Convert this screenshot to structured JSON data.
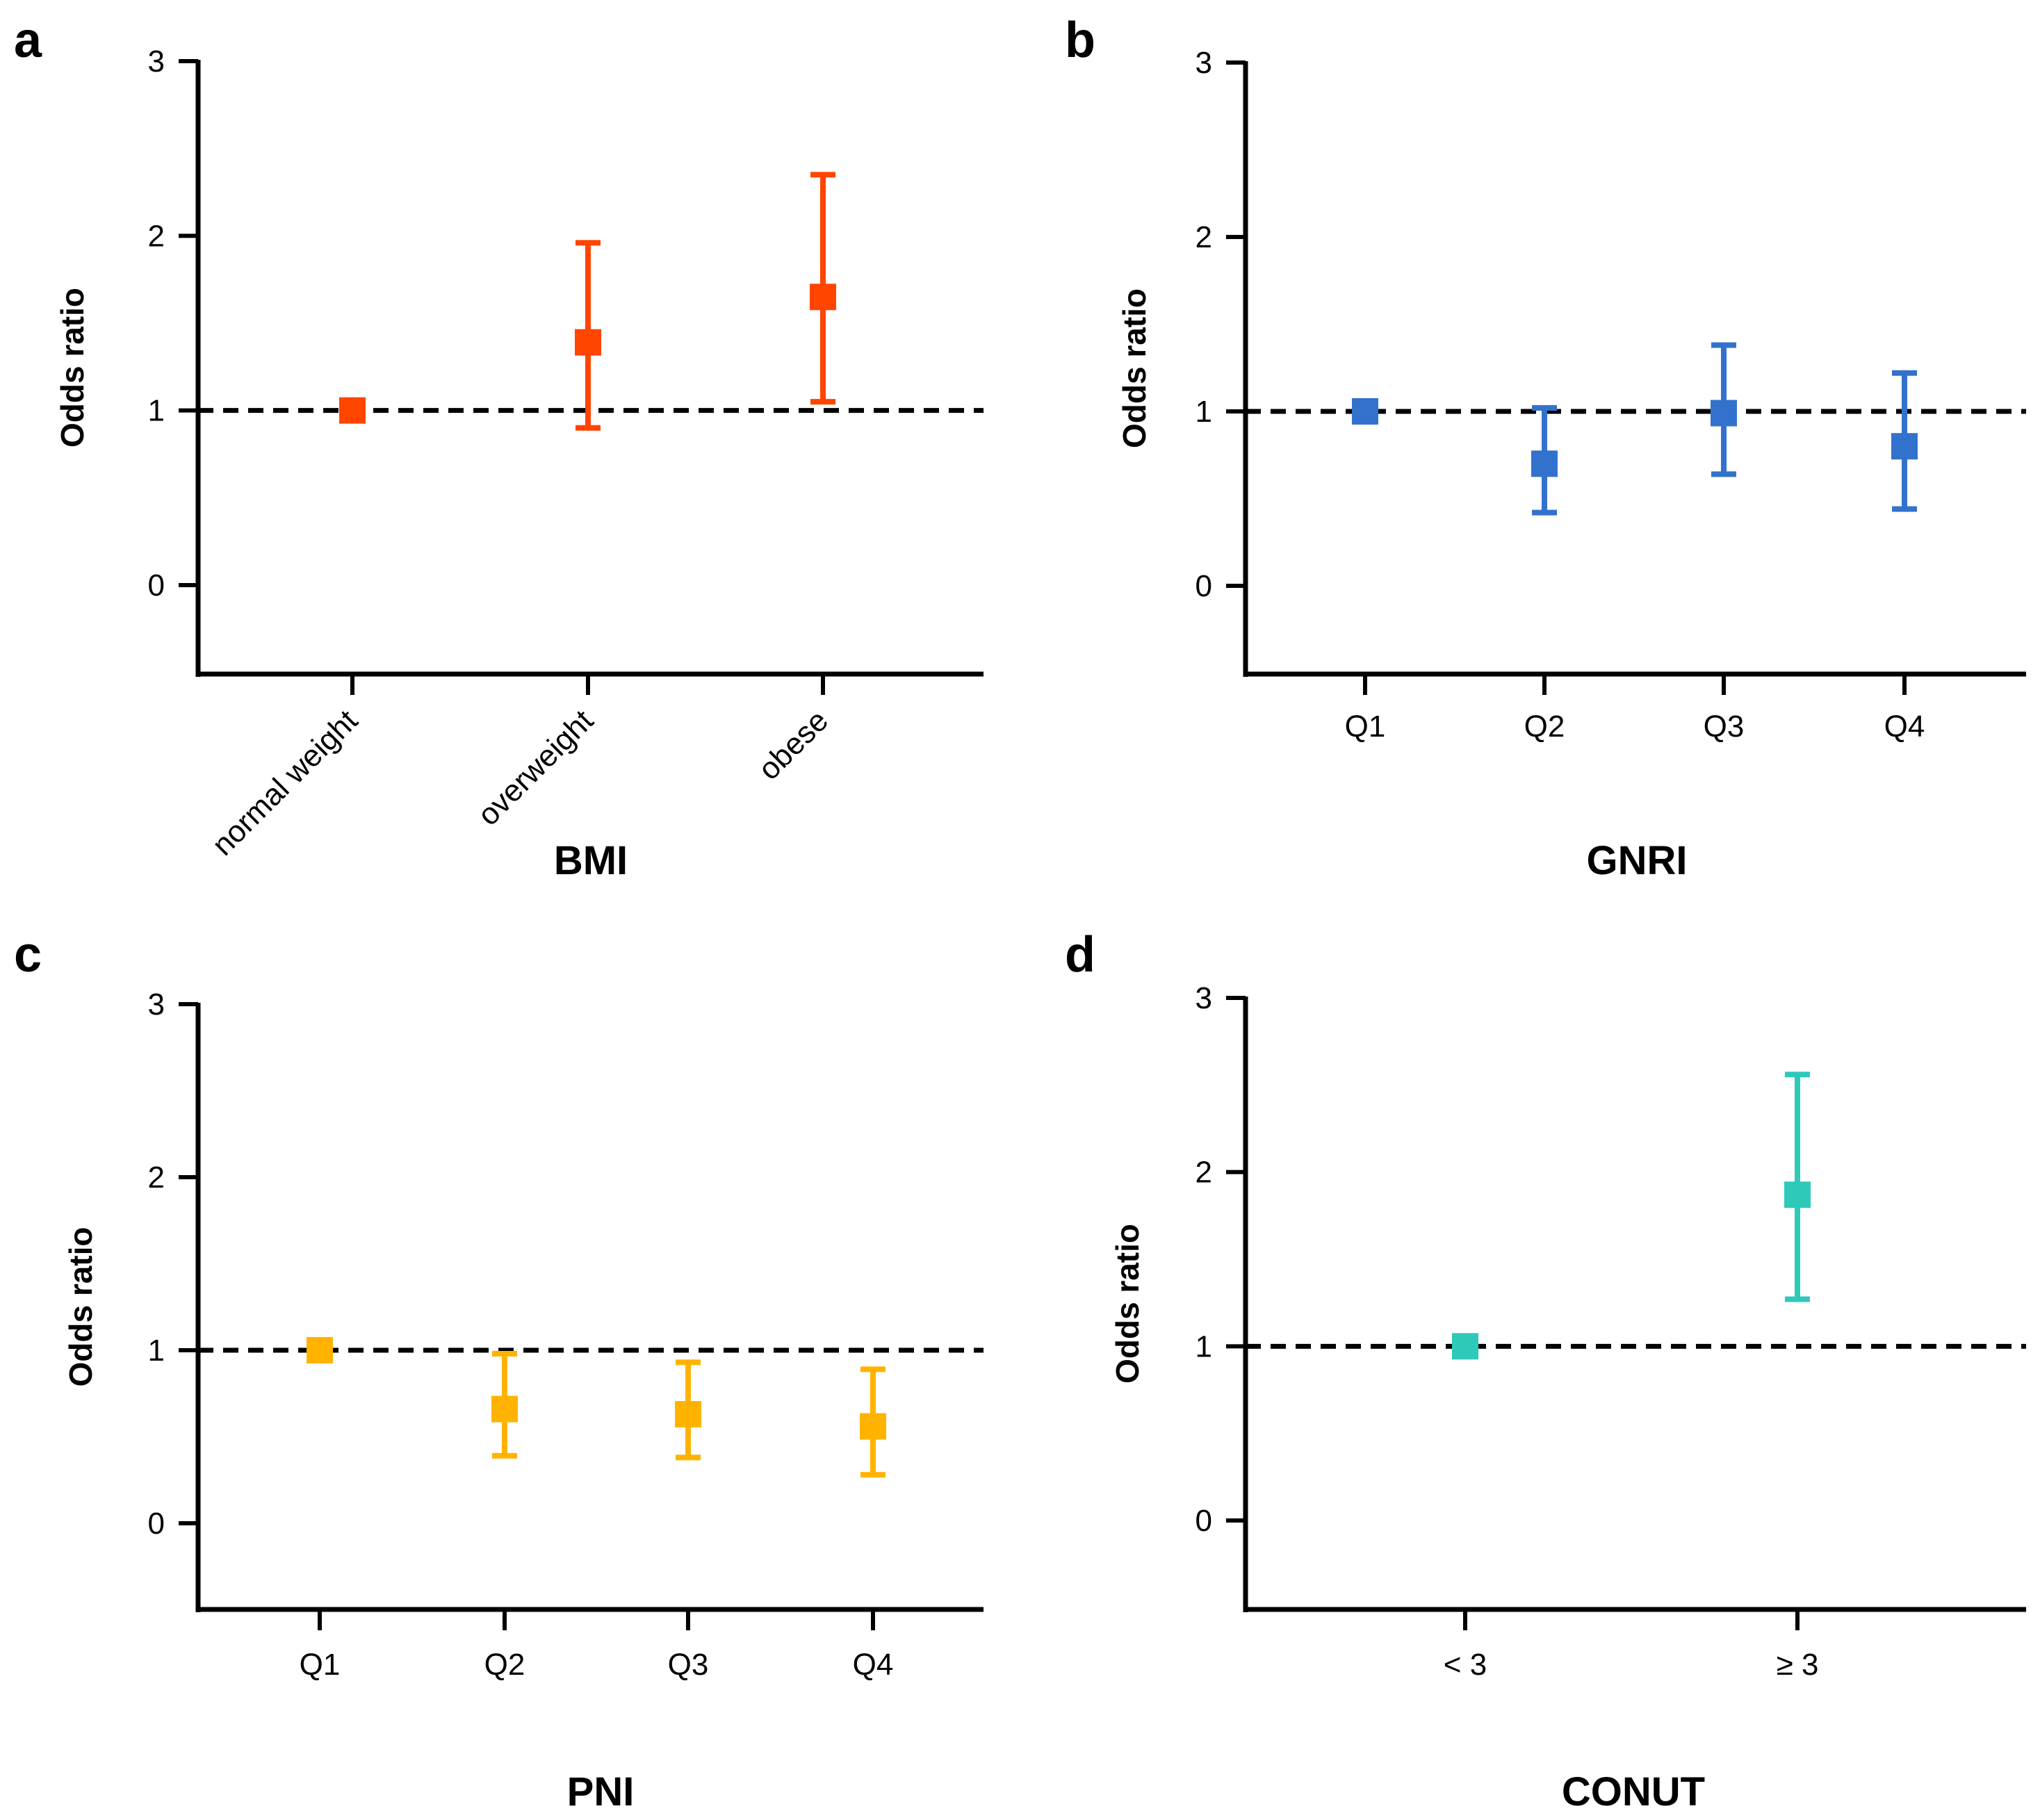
{
  "chart_data": [
    {
      "panel": "a",
      "type": "scatter",
      "title": "",
      "xlabel": "BMI",
      "ylabel": "Odds ratio",
      "ylim": [
        -0.5,
        3
      ],
      "yticks": [
        "0",
        "1",
        "2",
        "3"
      ],
      "categories": [
        "normal weight",
        "overweight",
        "obese"
      ],
      "values": [
        1.0,
        1.39,
        1.65
      ],
      "lower": [
        1.0,
        0.9,
        1.05
      ],
      "upper": [
        1.0,
        1.96,
        2.35
      ],
      "reference_line": 1,
      "color": "#ff4500",
      "rotate_labels": true
    },
    {
      "panel": "b",
      "type": "scatter",
      "title": "",
      "xlabel": "GNRI",
      "ylabel": "Odds ratio",
      "ylim": [
        -0.5,
        3
      ],
      "yticks": [
        "0",
        "1",
        "2",
        "3"
      ],
      "categories": [
        "Q1",
        "Q2",
        "Q3",
        "Q4"
      ],
      "values": [
        1.0,
        0.7,
        0.99,
        0.8
      ],
      "lower": [
        1.0,
        0.42,
        0.64,
        0.44
      ],
      "upper": [
        1.0,
        1.02,
        1.38,
        1.22
      ],
      "reference_line": 1,
      "color": "#3372cc",
      "rotate_labels": false
    },
    {
      "panel": "c",
      "type": "scatter",
      "title": "",
      "xlabel": "PNI",
      "ylabel": "Odds ratio",
      "ylim": [
        -0.5,
        3
      ],
      "yticks": [
        "0",
        "1",
        "2",
        "3"
      ],
      "categories": [
        "Q1",
        "Q2",
        "Q3",
        "Q4"
      ],
      "values": [
        1.0,
        0.66,
        0.63,
        0.56
      ],
      "lower": [
        1.0,
        0.39,
        0.38,
        0.28
      ],
      "upper": [
        1.0,
        0.98,
        0.93,
        0.89
      ],
      "reference_line": 1,
      "color": "#ffb300",
      "rotate_labels": false
    },
    {
      "panel": "d",
      "type": "scatter",
      "title": "",
      "xlabel": "CONUT",
      "ylabel": "Odds ratio",
      "ylim": [
        -0.5,
        3
      ],
      "yticks": [
        "0",
        "1",
        "2",
        "3"
      ],
      "categories": [
        "< 3",
        "≥ 3"
      ],
      "values": [
        1.0,
        1.87
      ],
      "lower": [
        1.0,
        1.27
      ],
      "upper": [
        1.0,
        2.56
      ],
      "reference_line": 1,
      "color": "#2ec9b9",
      "rotate_labels": false
    }
  ]
}
